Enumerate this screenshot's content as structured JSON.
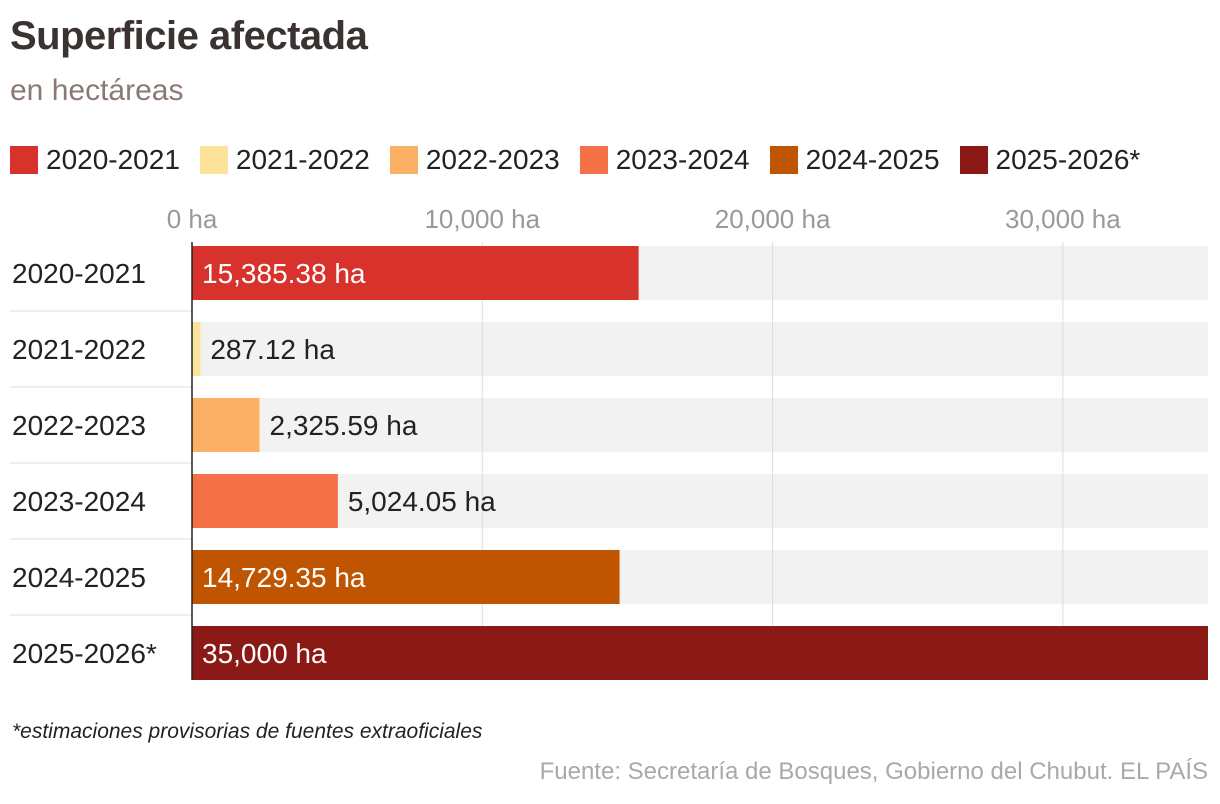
{
  "title": "Superficie afectada",
  "subtitle": "en hectáreas",
  "footnote": "*estimaciones provisorias de fuentes extraoficiales",
  "source": "Fuente: Secretaría de Bosques, Gobierno del Chubut. EL PAÍS",
  "chart_data": {
    "type": "bar",
    "orientation": "horizontal",
    "title": "Superficie afectada",
    "subtitle": "en hectáreas",
    "categories": [
      "2020-2021",
      "2021-2022",
      "2022-2023",
      "2023-2024",
      "2024-2025",
      "2025-2026*"
    ],
    "values": [
      15385.38,
      287.12,
      2325.59,
      5024.05,
      14729.35,
      35000
    ],
    "value_labels": [
      "15,385.38 ha",
      "287.12 ha",
      "2,325.59 ha",
      "5,024.05 ha",
      "14,729.35 ha",
      "35,000 ha"
    ],
    "colors": [
      "#d7322b",
      "#fde29a",
      "#fcb065",
      "#f47148",
      "#bf5500",
      "#8b1a16"
    ],
    "label_inside": [
      true,
      false,
      false,
      false,
      true,
      true
    ],
    "xlim": [
      0,
      35000
    ],
    "x_ticks": [
      0,
      10000,
      20000,
      30000
    ],
    "x_tick_labels": [
      "0 ha",
      "10,000 ha",
      "20,000 ha",
      "30,000 ha"
    ],
    "xlabel": "",
    "ylabel": "",
    "grid": true,
    "legend": {
      "position": "top",
      "entries": [
        "2020-2021",
        "2021-2022",
        "2022-2023",
        "2023-2024",
        "2024-2025",
        "2025-2026*"
      ]
    },
    "colors_meta": {
      "track": "#f2f2f2",
      "grid": "#dddddd",
      "tick_text": "#999999",
      "label_dark": "#222222",
      "label_light": "#ffffff"
    }
  }
}
